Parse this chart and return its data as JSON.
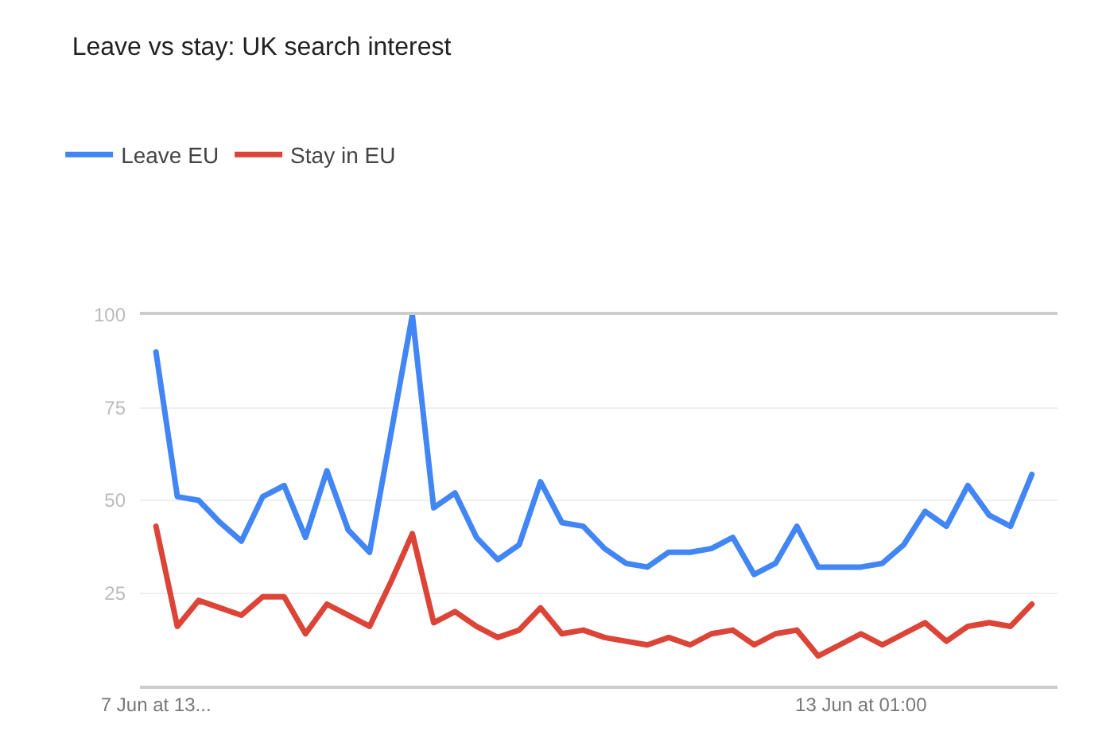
{
  "chart_data": {
    "type": "line",
    "title": "Leave vs stay: UK search interest",
    "categories": [
      "7 Jun at 13...",
      null,
      null,
      null,
      null,
      null,
      null,
      null,
      null,
      null,
      null,
      null,
      null,
      null,
      null,
      null,
      null,
      null,
      null,
      null,
      null,
      null,
      null,
      null,
      null,
      null,
      null,
      null,
      null,
      null,
      null,
      null,
      null,
      "13 Jun at 01:00",
      null,
      null,
      null,
      null,
      null,
      null,
      null,
      null
    ],
    "series": [
      {
        "name": "Leave EU",
        "color": "#4285f4",
        "values": [
          90,
          51,
          50,
          44,
          39,
          51,
          54,
          40,
          58,
          42,
          36,
          68,
          100,
          48,
          52,
          40,
          34,
          38,
          55,
          44,
          43,
          37,
          33,
          32,
          36,
          36,
          37,
          40,
          30,
          33,
          43,
          32,
          32,
          32,
          33,
          38,
          47,
          43,
          54,
          46,
          43,
          57
        ]
      },
      {
        "name": "Stay in EU",
        "color": "#db4437",
        "values": [
          43,
          16,
          23,
          21,
          19,
          24,
          24,
          14,
          22,
          19,
          16,
          28,
          41,
          17,
          20,
          16,
          13,
          15,
          21,
          14,
          15,
          13,
          12,
          11,
          13,
          11,
          14,
          15,
          11,
          14,
          15,
          8,
          11,
          14,
          11,
          14,
          17,
          12,
          16,
          17,
          16,
          22
        ]
      }
    ],
    "ylim": [
      0,
      100
    ],
    "yticks": [
      {
        "value": 25,
        "label": "25"
      },
      {
        "value": 50,
        "label": "50"
      },
      {
        "value": 75,
        "label": "75"
      },
      {
        "value": 100,
        "label": "100"
      }
    ],
    "grid": "y",
    "legend": "top left",
    "marker": "none",
    "line_style": "solid"
  }
}
